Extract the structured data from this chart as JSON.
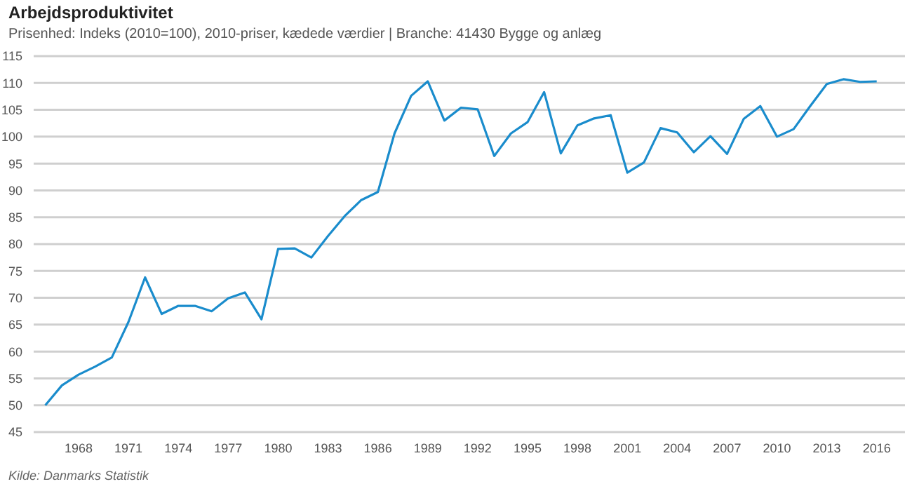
{
  "chart_data": {
    "type": "line",
    "title": "Arbejdsproduktivitet",
    "subtitle": "Prisenhed: Indeks (2010=100), 2010-priser, kædede værdier | Branche: 41430 Bygge og anlæg",
    "annotations": [
      "Kilde: Danmarks Statistik"
    ],
    "x": [
      1966,
      1967,
      1968,
      1969,
      1970,
      1971,
      1972,
      1973,
      1974,
      1975,
      1976,
      1977,
      1978,
      1979,
      1980,
      1981,
      1982,
      1983,
      1984,
      1985,
      1986,
      1987,
      1988,
      1989,
      1990,
      1991,
      1992,
      1993,
      1994,
      1995,
      1996,
      1997,
      1998,
      1999,
      2000,
      2001,
      2002,
      2003,
      2004,
      2005,
      2006,
      2007,
      2008,
      2009,
      2010,
      2011,
      2012,
      2013,
      2014,
      2015,
      2016
    ],
    "series": [
      {
        "color": "#1a8ccc",
        "values": [
          50,
          53.7,
          55.7,
          57.2,
          58.9,
          65.5,
          73.8,
          67,
          68.5,
          68.5,
          67.5,
          69.9,
          71,
          66,
          79.1,
          79.2,
          77.5,
          81.5,
          85.2,
          88.2,
          89.7,
          100.6,
          107.6,
          110.3,
          103,
          105.4,
          105.1,
          96.4,
          100.6,
          102.7,
          108.3,
          96.9,
          102.1,
          103.4,
          104,
          93.3,
          95.2,
          101.6,
          100.8,
          97.1,
          100.1,
          96.8,
          103.3,
          105.7,
          100,
          101.4,
          105.7,
          109.8,
          110.7,
          110.2,
          110.3
        ]
      }
    ],
    "xlim": [
      1965.3,
      2017.7
    ],
    "xticks": [
      1968,
      1971,
      1974,
      1977,
      1980,
      1983,
      1986,
      1989,
      1992,
      1995,
      1998,
      2001,
      2004,
      2007,
      2010,
      2013,
      2016
    ],
    "ylim": [
      45,
      115
    ],
    "yticks": [
      45,
      50,
      55,
      60,
      65,
      70,
      75,
      80,
      85,
      90,
      95,
      100,
      105,
      110,
      115
    ],
    "grid": "y",
    "legend": false,
    "marker": "none",
    "line_style": "solid"
  }
}
